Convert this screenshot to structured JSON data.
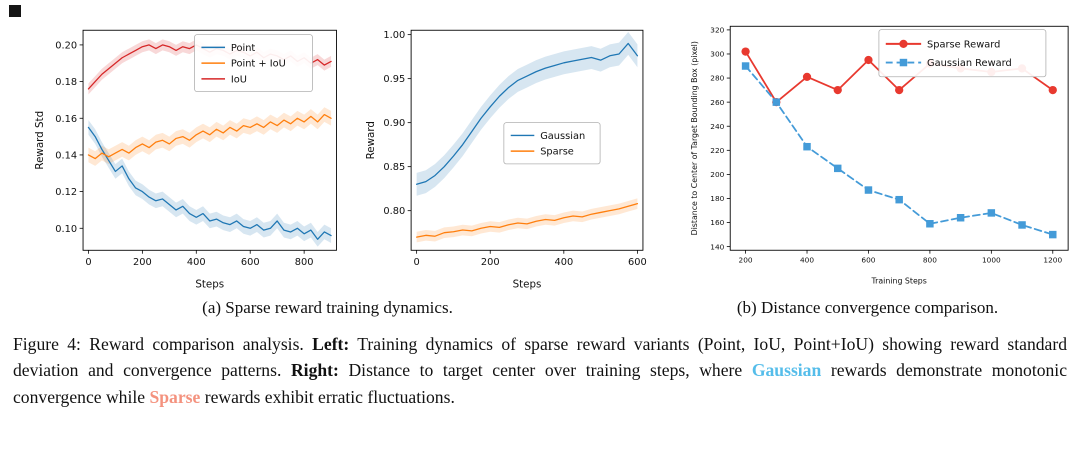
{
  "figure": {
    "subcaption_a": "(a) Sparse reward training dynamics.",
    "subcaption_b": "(b) Distance convergence comparison.",
    "caption_runs": [
      {
        "text": "Figure 4: Reward comparison analysis. ",
        "bold": false
      },
      {
        "text": "Left:",
        "bold": true
      },
      {
        "text": " Training dynamics of sparse reward variants (Point, IoU, Point+IoU) showing reward standard deviation and convergence patterns. ",
        "bold": false
      },
      {
        "text": "Right:",
        "bold": true
      },
      {
        "text": " Distance to target center over training steps, where ",
        "bold": false
      },
      {
        "text": "Gaussian",
        "bold": true,
        "color": "#55bdea"
      },
      {
        "text": " rewards demonstrate monotonic convergence while ",
        "bold": false
      },
      {
        "text": "Sparse",
        "bold": true,
        "color": "#f4927e"
      },
      {
        "text": " rewards exhibit erratic fluctuations.",
        "bold": false
      }
    ]
  },
  "chart_data": [
    {
      "type": "line",
      "title": "",
      "xlabel": "Steps",
      "ylabel": "Reward Std",
      "xlim": [
        -20,
        920
      ],
      "ylim": [
        0.088,
        0.208
      ],
      "xticks": [
        0,
        200,
        400,
        600,
        800
      ],
      "xtick_labels": [
        "0",
        "200",
        "400",
        "600",
        "800"
      ],
      "yticks": [
        0.1,
        0.12,
        0.14,
        0.16,
        0.18,
        0.2
      ],
      "ytick_labels": [
        "0.10",
        "0.12",
        "0.14",
        "0.16",
        "0.18",
        "0.20"
      ],
      "legend_position": "top-right",
      "grid": false,
      "x": [
        0,
        25,
        50,
        75,
        100,
        125,
        150,
        175,
        200,
        225,
        250,
        275,
        300,
        325,
        350,
        375,
        400,
        425,
        450,
        475,
        500,
        525,
        550,
        575,
        600,
        625,
        650,
        675,
        700,
        725,
        750,
        775,
        800,
        825,
        850,
        875,
        900
      ],
      "series": [
        {
          "name": "Point",
          "color": "#1f77b4",
          "band": 0.004,
          "values": [
            0.155,
            0.15,
            0.143,
            0.137,
            0.131,
            0.134,
            0.127,
            0.122,
            0.12,
            0.117,
            0.115,
            0.116,
            0.113,
            0.11,
            0.112,
            0.108,
            0.106,
            0.108,
            0.104,
            0.105,
            0.103,
            0.102,
            0.104,
            0.101,
            0.1,
            0.102,
            0.099,
            0.1,
            0.104,
            0.099,
            0.098,
            0.1,
            0.097,
            0.099,
            0.094,
            0.098,
            0.096
          ]
        },
        {
          "name": "Point + IoU",
          "color": "#ff7f0e",
          "band": 0.004,
          "values": [
            0.14,
            0.138,
            0.141,
            0.139,
            0.141,
            0.143,
            0.141,
            0.144,
            0.146,
            0.144,
            0.147,
            0.148,
            0.146,
            0.149,
            0.15,
            0.148,
            0.151,
            0.153,
            0.151,
            0.154,
            0.152,
            0.155,
            0.153,
            0.156,
            0.155,
            0.157,
            0.155,
            0.158,
            0.156,
            0.159,
            0.157,
            0.16,
            0.158,
            0.161,
            0.158,
            0.162,
            0.16
          ]
        },
        {
          "name": "IoU",
          "color": "#d62728",
          "band": 0.003,
          "values": [
            0.176,
            0.18,
            0.184,
            0.187,
            0.19,
            0.193,
            0.195,
            0.197,
            0.199,
            0.2,
            0.198,
            0.2,
            0.199,
            0.197,
            0.199,
            0.198,
            0.2,
            0.198,
            0.196,
            0.198,
            0.197,
            0.195,
            0.197,
            0.196,
            0.194,
            0.196,
            0.193,
            0.195,
            0.194,
            0.192,
            0.194,
            0.191,
            0.193,
            0.19,
            0.192,
            0.189,
            0.191
          ]
        }
      ]
    },
    {
      "type": "line",
      "title": "",
      "xlabel": "Steps",
      "ylabel": "Reward",
      "xlim": [
        -15,
        615
      ],
      "ylim": [
        0.755,
        1.005
      ],
      "xticks": [
        0,
        200,
        400,
        600
      ],
      "xtick_labels": [
        "0",
        "200",
        "400",
        "600"
      ],
      "yticks": [
        0.8,
        0.85,
        0.9,
        0.95,
        1.0
      ],
      "ytick_labels": [
        "0.80",
        "0.85",
        "0.90",
        "0.95",
        "1.00"
      ],
      "legend_position": "center-right",
      "grid": false,
      "x": [
        0,
        25,
        50,
        75,
        100,
        125,
        150,
        175,
        200,
        225,
        250,
        275,
        300,
        325,
        350,
        375,
        400,
        425,
        450,
        475,
        500,
        525,
        550,
        575,
        600
      ],
      "series": [
        {
          "name": "Gaussian",
          "color": "#1f77b4",
          "band": 0.013,
          "values": [
            0.83,
            0.833,
            0.84,
            0.85,
            0.862,
            0.875,
            0.89,
            0.905,
            0.918,
            0.93,
            0.94,
            0.948,
            0.953,
            0.958,
            0.962,
            0.965,
            0.968,
            0.97,
            0.972,
            0.974,
            0.971,
            0.976,
            0.978,
            0.99,
            0.976
          ]
        },
        {
          "name": "Sparse",
          "color": "#ff7f0e",
          "band": 0.006,
          "values": [
            0.77,
            0.772,
            0.771,
            0.775,
            0.776,
            0.778,
            0.777,
            0.78,
            0.782,
            0.781,
            0.784,
            0.786,
            0.785,
            0.788,
            0.79,
            0.789,
            0.792,
            0.794,
            0.793,
            0.796,
            0.798,
            0.8,
            0.802,
            0.805,
            0.808
          ]
        }
      ]
    },
    {
      "type": "line",
      "title": "",
      "xlabel": "Training Steps",
      "ylabel": "Distance to Center of Target Bounding Box (pixel)",
      "xlim": [
        150,
        1250
      ],
      "ylim": [
        137,
        323
      ],
      "xticks": [
        200,
        400,
        600,
        800,
        1000,
        1200
      ],
      "xtick_labels": [
        "200",
        "400",
        "600",
        "800",
        "1000",
        "1200"
      ],
      "yticks": [
        140,
        160,
        180,
        200,
        220,
        240,
        260,
        280,
        300,
        320
      ],
      "ytick_labels": [
        "140",
        "160",
        "180",
        "200",
        "220",
        "240",
        "260",
        "280",
        "300",
        "320"
      ],
      "legend_position": "top-right",
      "grid": false,
      "x": [
        200,
        300,
        400,
        500,
        600,
        700,
        800,
        900,
        1000,
        1100,
        1200
      ],
      "series": [
        {
          "name": "Sparse Reward",
          "color": "#e8392f",
          "marker": "circle",
          "values": [
            302,
            260,
            281,
            270,
            295,
            270,
            292,
            288,
            285,
            288,
            270
          ]
        },
        {
          "name": "Gaussian Reward",
          "color": "#449bd8",
          "marker": "square",
          "dash": [
            7,
            4
          ],
          "values": [
            290,
            260,
            223,
            205,
            187,
            179,
            159,
            164,
            168,
            158,
            150
          ]
        }
      ]
    }
  ]
}
